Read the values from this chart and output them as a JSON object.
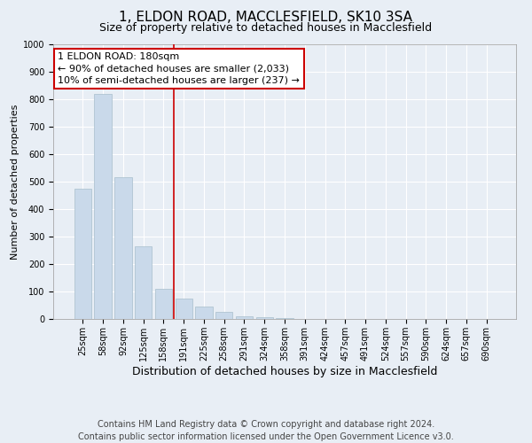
{
  "title": "1, ELDON ROAD, MACCLESFIELD, SK10 3SA",
  "subtitle": "Size of property relative to detached houses in Macclesfield",
  "xlabel": "Distribution of detached houses by size in Macclesfield",
  "ylabel": "Number of detached properties",
  "footnote1": "Contains HM Land Registry data © Crown copyright and database right 2024.",
  "footnote2": "Contains public sector information licensed under the Open Government Licence v3.0.",
  "annotation_line1": "1 ELDON ROAD: 180sqm",
  "annotation_line2": "← 90% of detached houses are smaller (2,033)",
  "annotation_line3": "10% of semi-detached houses are larger (237) →",
  "categories": [
    "25sqm",
    "58sqm",
    "92sqm",
    "125sqm",
    "158sqm",
    "191sqm",
    "225sqm",
    "258sqm",
    "291sqm",
    "324sqm",
    "358sqm",
    "391sqm",
    "424sqm",
    "457sqm",
    "491sqm",
    "524sqm",
    "557sqm",
    "590sqm",
    "624sqm",
    "657sqm",
    "690sqm"
  ],
  "bar_heights": [
    475,
    820,
    515,
    265,
    110,
    75,
    45,
    25,
    10,
    5,
    3,
    0,
    0,
    0,
    0,
    0,
    0,
    0,
    0,
    0,
    0
  ],
  "bar_color": "#c9d9ea",
  "bar_edge_color": "#a8becc",
  "marker_line_color": "#cc0000",
  "annotation_box_color": "#cc0000",
  "ylim": [
    0,
    1000
  ],
  "yticks": [
    0,
    100,
    200,
    300,
    400,
    500,
    600,
    700,
    800,
    900,
    1000
  ],
  "background_color": "#e8eef5",
  "plot_bg_color": "#e8eef5",
  "grid_color": "#ffffff",
  "title_fontsize": 11,
  "subtitle_fontsize": 9,
  "axis_label_fontsize": 9,
  "tick_fontsize": 7,
  "annotation_fontsize": 8,
  "footnote_fontsize": 7,
  "ylabel_fontsize": 8
}
